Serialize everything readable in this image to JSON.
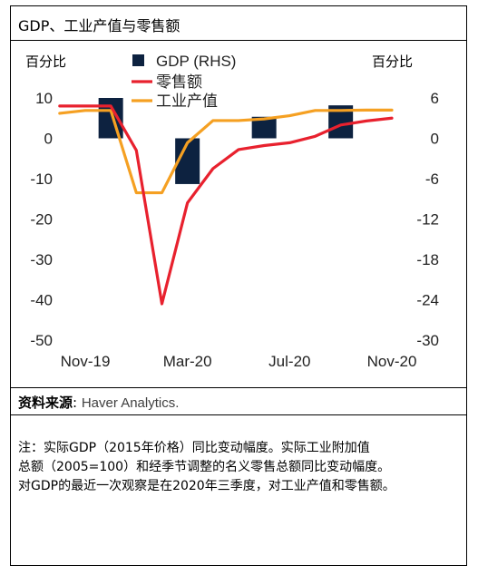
{
  "title": "GDP、工业产值与零售额",
  "source_label": "资料来源",
  "source_value": "Haver Analytics.",
  "note_lines": [
    "注：实际GDP（2015年价格）同比变动幅度。实际工业附加值",
    "总额（2005=100）和经季节调整的名义零售总额同比变动幅度。",
    "对GDP的最近一次观察是在2020年三季度，对工业产值和零售额。"
  ],
  "colors": {
    "gdp_bars": "#0d2240",
    "retail": "#e8212e",
    "industry": "#f5a022"
  },
  "chart_data": {
    "type": "bar+line",
    "left_axis": {
      "unit": "百分比",
      "ylim": [
        -50,
        10
      ],
      "ticks": [
        10,
        0,
        -10,
        -20,
        -30,
        -40,
        -50
      ]
    },
    "right_axis": {
      "unit": "百分比",
      "ylim": [
        -30,
        6
      ],
      "ticks": [
        6,
        0,
        -6,
        -12,
        -18,
        -24,
        -30
      ]
    },
    "x_tick_labels": [
      "Nov-19",
      "Mar-20",
      "Jul-20",
      "Nov-20"
    ],
    "x_tick_months": [
      0,
      4,
      8,
      12
    ],
    "legend": [
      "GDP (RHS)",
      "零售额",
      "工业产值"
    ],
    "series": [
      {
        "name": "GDP (RHS)",
        "type": "bar",
        "axis": "right",
        "x": [
          1,
          4,
          7,
          10
        ],
        "values": [
          6.0,
          -6.8,
          3.2,
          4.9
        ]
      },
      {
        "name": "零售额",
        "type": "line",
        "axis": "left",
        "x": [
          -1,
          0,
          1,
          2,
          3,
          4,
          5,
          6,
          7,
          8,
          9,
          10,
          11,
          12
        ],
        "values": [
          8.0,
          8.0,
          8.0,
          -3.0,
          -41.0,
          -16.0,
          -7.5,
          -2.8,
          -1.8,
          -1.1,
          0.5,
          3.3,
          4.3,
          5.0
        ]
      },
      {
        "name": "工业产值",
        "type": "line",
        "axis": "left",
        "x": [
          -1,
          0,
          1,
          2,
          3,
          4,
          5,
          6,
          7,
          8,
          9,
          10,
          11,
          12
        ],
        "values": [
          6.2,
          6.9,
          6.9,
          -13.5,
          -13.5,
          -1.1,
          4.4,
          4.4,
          4.8,
          5.6,
          6.9,
          6.9,
          7.0,
          7.0
        ]
      }
    ]
  }
}
